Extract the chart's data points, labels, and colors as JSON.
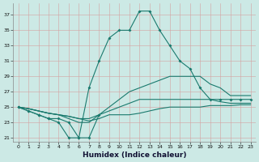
{
  "xlabel": "Humidex (Indice chaleur)",
  "bg_color": "#cce9e5",
  "line_color": "#1a7a6e",
  "grid_color": "#d4a0a0",
  "xlim": [
    -0.5,
    23.5
  ],
  "ylim": [
    20.5,
    38.5
  ],
  "yticks": [
    21,
    23,
    25,
    27,
    29,
    31,
    33,
    35,
    37
  ],
  "xticks": [
    0,
    1,
    2,
    3,
    4,
    5,
    6,
    7,
    8,
    9,
    10,
    11,
    12,
    13,
    14,
    15,
    16,
    17,
    18,
    19,
    20,
    21,
    22,
    23
  ],
  "line1_x": [
    0,
    1,
    2,
    3,
    4,
    5,
    6,
    7,
    8
  ],
  "line1_y": [
    25,
    24.5,
    24,
    23.5,
    23.5,
    23,
    21,
    21,
    24
  ],
  "line2_x": [
    0,
    1,
    2,
    3,
    4,
    5,
    6,
    7,
    8,
    9,
    10,
    11,
    12,
    13,
    14,
    15,
    16,
    17,
    18,
    19,
    20,
    21,
    22,
    23
  ],
  "line2_y": [
    25,
    24.5,
    24,
    23.5,
    23,
    21,
    21,
    27.5,
    31,
    34,
    35,
    35,
    37.5,
    37.5,
    35,
    33,
    31,
    30,
    27.5,
    26,
    26,
    26,
    26,
    26
  ],
  "line3_x": [
    0,
    1,
    2,
    3,
    4,
    5,
    6,
    7,
    8,
    9,
    10,
    11,
    12,
    13,
    14,
    15,
    16,
    17,
    18,
    19,
    20,
    21,
    22,
    23
  ],
  "line3_y": [
    25,
    24.8,
    24.5,
    24.2,
    24,
    23.5,
    23,
    23,
    24,
    25,
    26,
    27,
    27.5,
    28,
    28.5,
    29,
    29,
    29,
    29,
    28,
    27.5,
    26.5,
    26.5,
    26.5
  ],
  "line4_x": [
    0,
    1,
    2,
    3,
    4,
    5,
    6,
    7,
    8,
    9,
    10,
    11,
    12,
    13,
    14,
    15,
    16,
    17,
    18,
    19,
    20,
    21,
    22,
    23
  ],
  "line4_y": [
    25,
    24.8,
    24.5,
    24.2,
    24,
    23.8,
    23.5,
    23.5,
    24,
    24.5,
    25,
    25.5,
    26,
    26,
    26,
    26,
    26,
    26,
    26,
    26,
    25.7,
    25.5,
    25.5,
    25.5
  ],
  "line5_x": [
    0,
    1,
    2,
    3,
    4,
    5,
    6,
    7,
    8,
    9,
    10,
    11,
    12,
    13,
    14,
    15,
    16,
    17,
    18,
    19,
    20,
    21,
    22,
    23
  ],
  "line5_y": [
    25,
    24.8,
    24.5,
    24.2,
    24,
    23.8,
    23.5,
    23.2,
    23.5,
    24,
    24,
    24,
    24.2,
    24.5,
    24.8,
    25,
    25,
    25,
    25,
    25.2,
    25.2,
    25.2,
    25.3,
    25.3
  ]
}
